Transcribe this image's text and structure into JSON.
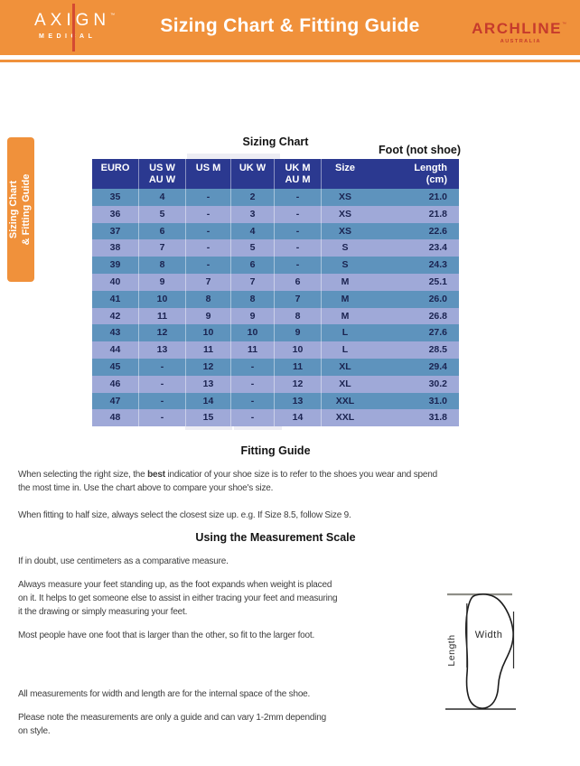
{
  "header": {
    "axign_name": "AXIGN",
    "axign_tm": "™",
    "axign_sub": "MEDICAL",
    "title": "Sizing Chart & Fitting Guide",
    "archline_name": "ARCHLINE",
    "archline_tm": "™",
    "archline_sub": "AUSTRALIA"
  },
  "side_tab": {
    "line1": "Sizing Chart",
    "line2": "& Fitting Guide"
  },
  "colors": {
    "orange": "#F0913B",
    "archline_red": "#C63B2C",
    "navy": "#2B3990",
    "row_blue": "#5E93BD",
    "row_periwinkle": "#9FA9D8",
    "cell_text": "#1B2350"
  },
  "sizing_chart": {
    "heading": "Sizing Chart",
    "foot_note": "Foot (not shoe)",
    "columns": [
      {
        "line1": "EURO",
        "line2": ""
      },
      {
        "line1": "US W",
        "line2": "AU W"
      },
      {
        "line1": "US M",
        "line2": ""
      },
      {
        "line1": "UK W",
        "line2": ""
      },
      {
        "line1": "UK M",
        "line2": "AU M"
      },
      {
        "line1": "Size",
        "line2": ""
      },
      {
        "line1": "Length",
        "line2": "(cm)"
      }
    ],
    "rows": [
      [
        "35",
        "4",
        "-",
        "2",
        "-",
        "XS",
        "21.0"
      ],
      [
        "36",
        "5",
        "-",
        "3",
        "-",
        "XS",
        "21.8"
      ],
      [
        "37",
        "6",
        "-",
        "4",
        "-",
        "XS",
        "22.6"
      ],
      [
        "38",
        "7",
        "-",
        "5",
        "-",
        "S",
        "23.4"
      ],
      [
        "39",
        "8",
        "-",
        "6",
        "-",
        "S",
        "24.3"
      ],
      [
        "40",
        "9",
        "7",
        "7",
        "6",
        "M",
        "25.1"
      ],
      [
        "41",
        "10",
        "8",
        "8",
        "7",
        "M",
        "26.0"
      ],
      [
        "42",
        "11",
        "9",
        "9",
        "8",
        "M",
        "26.8"
      ],
      [
        "43",
        "12",
        "10",
        "10",
        "9",
        "L",
        "27.6"
      ],
      [
        "44",
        "13",
        "11",
        "11",
        "10",
        "L",
        "28.5"
      ],
      [
        "45",
        "-",
        "12",
        "-",
        "11",
        "XL",
        "29.4"
      ],
      [
        "46",
        "-",
        "13",
        "-",
        "12",
        "XL",
        "30.2"
      ],
      [
        "47",
        "-",
        "14",
        "-",
        "13",
        "XXL",
        "31.0"
      ],
      [
        "48",
        "-",
        "15",
        "-",
        "14",
        "XXL",
        "31.8"
      ]
    ]
  },
  "fitting_guide": {
    "heading": "Fitting Guide",
    "p1_pre": "When selecting the right size, the ",
    "p1_bold": "best",
    "p1_post": " indicatior of your shoe size is to refer to the shoes you wear and spend\nthe most time in. Use the chart above to compare your shoe's size.",
    "p2": "When fitting to half size, always select the closest size up. e.g. If Size 8.5, follow Size 9."
  },
  "measurement": {
    "heading": "Using the Measurement Scale",
    "p1": "If in doubt, use centimeters as a comparative measure.",
    "p2": "Always measure your feet standing up, as the foot expands when weight is placed\non it. It helps to get someone else to assist in either tracing your feet and measuring\nit the drawing or simply measuring your feet.",
    "p3": "Most people have one foot that is larger than the other, so fit to the larger foot.",
    "p4": "All measurements for width and length are for the internal space of the shoe.",
    "p5": "Please note the measurements are only a guide and can vary 1-2mm depending\non style."
  },
  "diagram": {
    "width_label": "Width",
    "length_label": "Length"
  }
}
